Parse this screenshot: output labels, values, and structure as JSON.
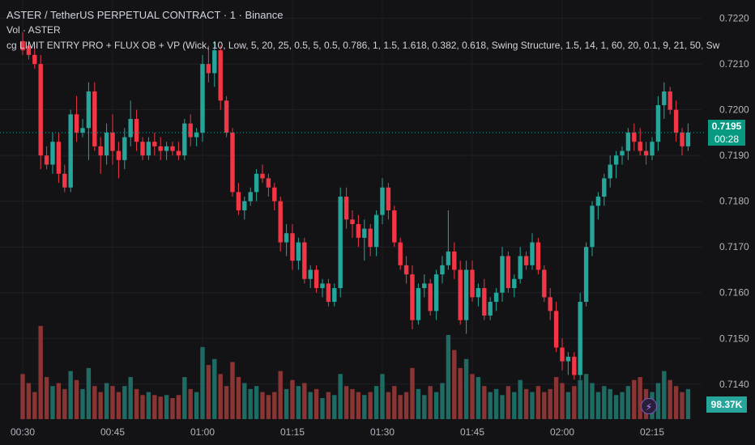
{
  "header": {
    "title": "ASTER / TetherUS PERPETUAL CONTRACT · 1 · Binance",
    "volume_label": "Vol · ASTER",
    "indicator_label": "cg LIMIT ENTRY PRO + FLUX OB + VP (Wick, 10, Low, 5, 20, 25, 0.5, 5, 0.5, 0.786, 1, 1.5, 1.618, 0.382, 0.618, Swing Structure, 1.5, 14, 1, 60, 20, 0.1, 9, 21, 50, Sw"
  },
  "price_axis": {
    "current_price": "0.7195",
    "countdown": "00:28",
    "volume_value": "98.37K"
  },
  "icons": {
    "alert": "lightning-bolt-icon"
  },
  "colors": {
    "up": "#26a69a",
    "down": "#f23645",
    "up_volume": "#1e6b63",
    "down_volume": "#8a3434",
    "background": "#131316"
  },
  "chart_data": {
    "type": "candlestick",
    "y_ticks": [
      "0.7140",
      "0.7150",
      "0.7160",
      "0.7170",
      "0.7180",
      "0.7190",
      "0.7200",
      "0.7210",
      "0.7220"
    ],
    "ylim": [
      0.7132,
      0.7224
    ],
    "x_ticks": [
      "00:30",
      "00:45",
      "01:00",
      "01:15",
      "01:30",
      "01:45",
      "02:00",
      "02:15"
    ],
    "x_tick_index": [
      0,
      15,
      30,
      45,
      60,
      75,
      90,
      105
    ],
    "grid": true,
    "candles": [
      [
        0.7215,
        0.7217,
        0.7212,
        0.7213
      ],
      [
        0.7214,
        0.7215,
        0.7211,
        0.7212
      ],
      [
        0.7212,
        0.7214,
        0.7209,
        0.721
      ],
      [
        0.721,
        0.7212,
        0.7187,
        0.719
      ],
      [
        0.719,
        0.7192,
        0.7187,
        0.7188
      ],
      [
        0.7188,
        0.7195,
        0.7186,
        0.7193
      ],
      [
        0.7193,
        0.7195,
        0.7184,
        0.7186
      ],
      [
        0.7186,
        0.7188,
        0.7182,
        0.7183
      ],
      [
        0.7183,
        0.72,
        0.7182,
        0.7199
      ],
      [
        0.7199,
        0.7203,
        0.7193,
        0.7195
      ],
      [
        0.7195,
        0.7198,
        0.7194,
        0.7196
      ],
      [
        0.7196,
        0.7206,
        0.7189,
        0.7204
      ],
      [
        0.7204,
        0.7206,
        0.7191,
        0.7192
      ],
      [
        0.7192,
        0.7194,
        0.7186,
        0.719
      ],
      [
        0.719,
        0.7197,
        0.7188,
        0.7195
      ],
      [
        0.7195,
        0.7199,
        0.7188,
        0.7191
      ],
      [
        0.7191,
        0.7193,
        0.7185,
        0.7189
      ],
      [
        0.7189,
        0.7196,
        0.7187,
        0.7194
      ],
      [
        0.7194,
        0.7202,
        0.7192,
        0.7198
      ],
      [
        0.7198,
        0.72,
        0.7191,
        0.7193
      ],
      [
        0.7193,
        0.7194,
        0.7189,
        0.719
      ],
      [
        0.719,
        0.7194,
        0.7189,
        0.7193
      ],
      [
        0.7193,
        0.7195,
        0.719,
        0.7192
      ],
      [
        0.7192,
        0.7194,
        0.7189,
        0.7191
      ],
      [
        0.7191,
        0.7193,
        0.7189,
        0.7192
      ],
      [
        0.7192,
        0.7193,
        0.719,
        0.7191
      ],
      [
        0.7191,
        0.7193,
        0.7189,
        0.719
      ],
      [
        0.719,
        0.7198,
        0.7189,
        0.7197
      ],
      [
        0.7197,
        0.7199,
        0.7192,
        0.7194
      ],
      [
        0.7194,
        0.7196,
        0.7192,
        0.7195
      ],
      [
        0.7195,
        0.7212,
        0.7193,
        0.721
      ],
      [
        0.721,
        0.7214,
        0.7206,
        0.7208
      ],
      [
        0.7208,
        0.7215,
        0.7205,
        0.7213
      ],
      [
        0.7213,
        0.7214,
        0.72,
        0.7202
      ],
      [
        0.7202,
        0.7203,
        0.7194,
        0.7195
      ],
      [
        0.7195,
        0.7196,
        0.7181,
        0.7182
      ],
      [
        0.7182,
        0.7184,
        0.7177,
        0.7178
      ],
      [
        0.7178,
        0.7181,
        0.7176,
        0.718
      ],
      [
        0.718,
        0.7183,
        0.7179,
        0.7182
      ],
      [
        0.7182,
        0.7187,
        0.718,
        0.7186
      ],
      [
        0.7186,
        0.7188,
        0.7184,
        0.7185
      ],
      [
        0.7185,
        0.7186,
        0.7181,
        0.7183
      ],
      [
        0.7183,
        0.7184,
        0.7178,
        0.718
      ],
      [
        0.718,
        0.7181,
        0.7169,
        0.7171
      ],
      [
        0.7171,
        0.7175,
        0.7168,
        0.7173
      ],
      [
        0.7173,
        0.7175,
        0.7165,
        0.7167
      ],
      [
        0.7167,
        0.7172,
        0.7165,
        0.7171
      ],
      [
        0.7171,
        0.7172,
        0.7162,
        0.7163
      ],
      [
        0.7163,
        0.7166,
        0.7161,
        0.7165
      ],
      [
        0.7165,
        0.7166,
        0.716,
        0.7161
      ],
      [
        0.7161,
        0.7163,
        0.7159,
        0.7162
      ],
      [
        0.7162,
        0.7163,
        0.7157,
        0.7158
      ],
      [
        0.7158,
        0.7162,
        0.7157,
        0.7161
      ],
      [
        0.7161,
        0.7183,
        0.7159,
        0.7181
      ],
      [
        0.7181,
        0.7183,
        0.7174,
        0.7176
      ],
      [
        0.7176,
        0.7178,
        0.7172,
        0.7175
      ],
      [
        0.7175,
        0.7177,
        0.717,
        0.7172
      ],
      [
        0.7172,
        0.7176,
        0.7167,
        0.7174
      ],
      [
        0.7174,
        0.7175,
        0.7168,
        0.717
      ],
      [
        0.717,
        0.7178,
        0.7168,
        0.7177
      ],
      [
        0.7177,
        0.7185,
        0.7175,
        0.7183
      ],
      [
        0.7183,
        0.7184,
        0.7176,
        0.7178
      ],
      [
        0.7178,
        0.7179,
        0.717,
        0.7171
      ],
      [
        0.7171,
        0.7172,
        0.7165,
        0.7166
      ],
      [
        0.7166,
        0.7168,
        0.7162,
        0.7164
      ],
      [
        0.7164,
        0.7166,
        0.7152,
        0.7154
      ],
      [
        0.7154,
        0.7162,
        0.7153,
        0.7161
      ],
      [
        0.7161,
        0.7164,
        0.7159,
        0.7162
      ],
      [
        0.7162,
        0.7163,
        0.7155,
        0.7156
      ],
      [
        0.7156,
        0.7165,
        0.7154,
        0.7164
      ],
      [
        0.7164,
        0.7168,
        0.7162,
        0.7166
      ],
      [
        0.7166,
        0.7178,
        0.7165,
        0.7169
      ],
      [
        0.7169,
        0.7171,
        0.7163,
        0.7165
      ],
      [
        0.7165,
        0.7167,
        0.7153,
        0.7154
      ],
      [
        0.7154,
        0.7167,
        0.7151,
        0.7165
      ],
      [
        0.7165,
        0.7167,
        0.7158,
        0.7159
      ],
      [
        0.7159,
        0.7162,
        0.7157,
        0.7161
      ],
      [
        0.7161,
        0.7163,
        0.7154,
        0.7155
      ],
      [
        0.7155,
        0.7159,
        0.7154,
        0.7158
      ],
      [
        0.7158,
        0.7161,
        0.7156,
        0.716
      ],
      [
        0.716,
        0.717,
        0.7158,
        0.7168
      ],
      [
        0.7168,
        0.7169,
        0.716,
        0.7161
      ],
      [
        0.7161,
        0.7164,
        0.7159,
        0.7163
      ],
      [
        0.7163,
        0.717,
        0.7162,
        0.7168
      ],
      [
        0.7168,
        0.7169,
        0.7165,
        0.7166
      ],
      [
        0.7166,
        0.7173,
        0.7165,
        0.7171
      ],
      [
        0.7171,
        0.7172,
        0.7164,
        0.7165
      ],
      [
        0.7165,
        0.7166,
        0.7158,
        0.7159
      ],
      [
        0.7159,
        0.7161,
        0.7154,
        0.7156
      ],
      [
        0.7156,
        0.7158,
        0.7147,
        0.7148
      ],
      [
        0.7148,
        0.715,
        0.7143,
        0.7145
      ],
      [
        0.7145,
        0.7147,
        0.7142,
        0.7146
      ],
      [
        0.7146,
        0.7147,
        0.7141,
        0.7142
      ],
      [
        0.7142,
        0.716,
        0.7141,
        0.7158
      ],
      [
        0.7158,
        0.7171,
        0.7157,
        0.717
      ],
      [
        0.717,
        0.718,
        0.7168,
        0.7179
      ],
      [
        0.7179,
        0.7182,
        0.7176,
        0.7181
      ],
      [
        0.7181,
        0.7186,
        0.7179,
        0.7185
      ],
      [
        0.7185,
        0.719,
        0.7183,
        0.7188
      ],
      [
        0.7188,
        0.7191,
        0.7185,
        0.719
      ],
      [
        0.719,
        0.7192,
        0.7188,
        0.7191
      ],
      [
        0.7191,
        0.7196,
        0.7189,
        0.7195
      ],
      [
        0.7195,
        0.7197,
        0.7191,
        0.7193
      ],
      [
        0.7193,
        0.7196,
        0.719,
        0.7191
      ],
      [
        0.7191,
        0.7193,
        0.7188,
        0.719
      ],
      [
        0.719,
        0.7194,
        0.7189,
        0.7193
      ],
      [
        0.7193,
        0.7203,
        0.7191,
        0.7201
      ],
      [
        0.7201,
        0.7206,
        0.7198,
        0.7204
      ],
      [
        0.7204,
        0.7205,
        0.7199,
        0.72
      ],
      [
        0.72,
        0.7202,
        0.7193,
        0.7195
      ],
      [
        0.7195,
        0.7196,
        0.719,
        0.7192
      ],
      [
        0.7192,
        0.7197,
        0.7191,
        0.7195
      ]
    ],
    "volumes": [
      30,
      24,
      18,
      62,
      28,
      22,
      24,
      20,
      32,
      26,
      20,
      34,
      22,
      18,
      24,
      22,
      18,
      22,
      28,
      20,
      16,
      18,
      16,
      15,
      16,
      14,
      16,
      28,
      20,
      18,
      48,
      36,
      40,
      30,
      22,
      38,
      28,
      24,
      20,
      22,
      18,
      16,
      18,
      32,
      20,
      26,
      22,
      24,
      18,
      20,
      14,
      18,
      16,
      30,
      22,
      20,
      18,
      16,
      18,
      22,
      30,
      18,
      22,
      16,
      18,
      34,
      20,
      16,
      22,
      18,
      24,
      56,
      46,
      34,
      40,
      30,
      28,
      22,
      18,
      20,
      16,
      22,
      18,
      26,
      20,
      18,
      22,
      18,
      20,
      28,
      24,
      18,
      22,
      26,
      30,
      24,
      18,
      22,
      20,
      16,
      18,
      22,
      26,
      28,
      20,
      18,
      24,
      32,
      26,
      22,
      18,
      20
    ],
    "volume_ylim": [
      0,
      70
    ]
  }
}
